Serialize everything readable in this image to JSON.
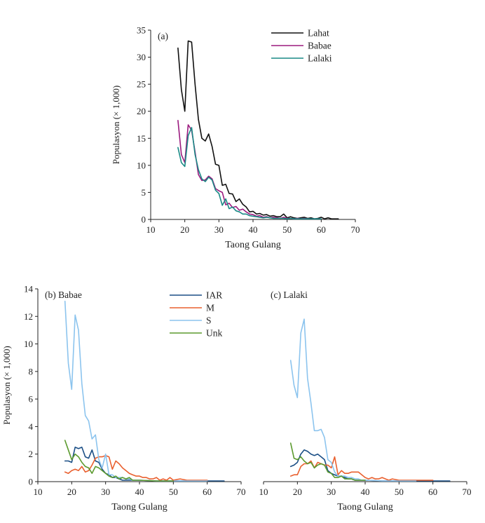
{
  "colors": {
    "Lahat": "#111111",
    "Babae": "#9b1a7f",
    "Lalaki": "#1a8a86",
    "IAR": "#1b4f86",
    "M": "#e9602f",
    "S": "#8cc4ee",
    "Unk": "#5b9a2e"
  },
  "chart_data": [
    {
      "id": "a",
      "type": "line",
      "title": "",
      "panel_label": "(a)",
      "xlabel": "Taong Gulang",
      "ylabel": "Populasyon (× 1,000)",
      "xlim": [
        10,
        70
      ],
      "ylim": [
        0,
        35
      ],
      "xticks": [
        10,
        20,
        30,
        40,
        50,
        60,
        70
      ],
      "yticks": [
        0,
        5,
        10,
        15,
        20,
        25,
        30,
        35
      ],
      "legend": "top-right",
      "series": [
        {
          "name": "Lahat",
          "x": [
            18,
            19,
            20,
            21,
            22,
            23,
            24,
            25,
            26,
            27,
            28,
            29,
            30,
            31,
            32,
            33,
            34,
            35,
            36,
            37,
            38,
            39,
            40,
            41,
            42,
            43,
            44,
            45,
            46,
            47,
            48,
            49,
            50,
            51,
            52,
            53,
            54,
            55,
            56,
            57,
            58,
            59,
            60,
            61,
            62,
            63,
            64,
            65
          ],
          "values": [
            31.7,
            24.0,
            20.0,
            33.0,
            32.8,
            25.0,
            18.5,
            15.0,
            14.5,
            15.8,
            13.5,
            10.2,
            10.0,
            6.3,
            6.5,
            4.8,
            4.7,
            3.3,
            3.8,
            2.8,
            2.3,
            1.4,
            1.5,
            1.0,
            1.1,
            0.8,
            0.9,
            0.6,
            0.7,
            0.5,
            0.5,
            1.0,
            0.3,
            0.5,
            0.3,
            0.2,
            0.3,
            0.4,
            0.2,
            0.3,
            0.1,
            0.2,
            0.4,
            0.1,
            0.3,
            0.1,
            0.1,
            0.1
          ]
        },
        {
          "name": "Babae",
          "x": [
            18,
            19,
            20,
            21,
            22,
            23,
            24,
            25,
            26,
            27,
            28,
            29,
            30,
            31,
            32,
            33,
            34,
            35,
            36,
            37,
            38,
            39,
            40,
            41,
            42,
            43,
            44,
            45,
            46,
            47,
            48,
            49,
            50,
            51,
            52,
            53,
            54,
            55,
            56,
            57,
            58,
            59,
            60
          ],
          "values": [
            18.3,
            12.0,
            10.5,
            17.5,
            16.5,
            12.5,
            8.3,
            7.2,
            7.3,
            8.0,
            7.5,
            5.7,
            5.3,
            5.0,
            2.7,
            3.0,
            2.2,
            2.4,
            1.7,
            1.9,
            1.4,
            1.0,
            0.9,
            0.6,
            0.7,
            0.4,
            0.5,
            0.3,
            0.4,
            0.3,
            0.2,
            0.4,
            0.2,
            0.2,
            0.1,
            0.2,
            0.1,
            0.2,
            0.1,
            0.1,
            0.1,
            0.1,
            0.1
          ]
        },
        {
          "name": "Lalaki",
          "x": [
            18,
            19,
            20,
            21,
            22,
            23,
            24,
            25,
            26,
            27,
            28,
            29,
            30,
            31,
            32,
            33,
            34,
            35,
            36,
            37,
            38,
            39,
            40,
            41,
            42,
            43,
            44,
            45,
            46,
            47,
            48,
            49,
            50,
            51,
            52,
            53,
            54,
            55,
            56,
            57,
            58,
            59,
            60
          ],
          "values": [
            13.3,
            10.5,
            9.8,
            15.5,
            17.0,
            12.0,
            9.2,
            7.5,
            7.0,
            7.8,
            7.3,
            5.4,
            4.8,
            2.6,
            3.8,
            2.0,
            2.3,
            1.6,
            1.4,
            1.0,
            1.0,
            0.7,
            0.6,
            0.5,
            0.4,
            0.3,
            0.4,
            0.3,
            0.2,
            0.2,
            0.2,
            0.2,
            0.1,
            0.2,
            0.1,
            0.1,
            0.1,
            0.1,
            0.1,
            0.1,
            0.1,
            0.1,
            0.1
          ]
        }
      ]
    },
    {
      "id": "b",
      "type": "line",
      "title": "",
      "panel_label": "(b) Babae",
      "xlabel": "Taong Gulang",
      "ylabel": "Populasyon (× 1,000)",
      "xlim": [
        10,
        70
      ],
      "ylim": [
        0,
        14
      ],
      "xticks": [
        10,
        20,
        30,
        40,
        50,
        60,
        70
      ],
      "yticks": [
        0,
        2,
        4,
        6,
        8,
        10,
        12,
        14
      ],
      "legend": "top-right",
      "series": [
        {
          "name": "IAR",
          "x": [
            18,
            19,
            20,
            21,
            22,
            23,
            24,
            25,
            26,
            27,
            28,
            29,
            30,
            31,
            32,
            33,
            34,
            35,
            36,
            37,
            38,
            39,
            40,
            45,
            50,
            55,
            60,
            65
          ],
          "values": [
            1.5,
            1.5,
            1.4,
            2.5,
            2.4,
            2.5,
            1.8,
            1.7,
            2.3,
            1.5,
            1.4,
            0.9,
            0.6,
            0.5,
            0.3,
            0.3,
            0.2,
            0.1,
            0.1,
            0.1,
            0.1,
            0.1,
            0.1,
            0.05,
            0.05,
            0.05,
            0.05,
            0.05
          ]
        },
        {
          "name": "M",
          "x": [
            18,
            19,
            20,
            21,
            22,
            23,
            24,
            25,
            26,
            27,
            28,
            29,
            30,
            31,
            32,
            33,
            34,
            35,
            36,
            37,
            38,
            39,
            40,
            41,
            42,
            43,
            44,
            45,
            46,
            47,
            48,
            49,
            50,
            52,
            54,
            56,
            58,
            60
          ],
          "values": [
            0.7,
            0.6,
            0.8,
            0.9,
            0.8,
            1.1,
            0.7,
            0.8,
            1.2,
            1.7,
            1.8,
            1.8,
            1.9,
            1.8,
            0.9,
            1.5,
            1.3,
            1.0,
            0.8,
            0.6,
            0.5,
            0.4,
            0.4,
            0.3,
            0.3,
            0.2,
            0.2,
            0.3,
            0.1,
            0.2,
            0.1,
            0.3,
            0.1,
            0.2,
            0.1,
            0.1,
            0.1,
            0.1
          ]
        },
        {
          "name": "S",
          "x": [
            18,
            19,
            20,
            21,
            22,
            23,
            24,
            25,
            26,
            27,
            28,
            29,
            30,
            31,
            32,
            33,
            34,
            35,
            36,
            37,
            38,
            39,
            40,
            45,
            50,
            55,
            60
          ],
          "values": [
            13.1,
            8.6,
            6.7,
            12.1,
            11.0,
            7.1,
            4.8,
            4.4,
            3.1,
            3.4,
            1.6,
            1.0,
            2.0,
            0.5,
            0.5,
            0.3,
            0.3,
            0.3,
            0.2,
            0.2,
            0.1,
            0.1,
            0.1,
            0.05,
            0.05,
            0.05,
            0.05
          ]
        },
        {
          "name": "Unk",
          "x": [
            18,
            19,
            20,
            21,
            22,
            23,
            24,
            25,
            26,
            27,
            28,
            29,
            30,
            31,
            32,
            33,
            34,
            35,
            36,
            37,
            38,
            39,
            40,
            45,
            50
          ],
          "values": [
            3.0,
            2.3,
            1.6,
            2.0,
            1.8,
            1.4,
            1.1,
            1.0,
            0.6,
            1.1,
            1.0,
            0.8,
            0.6,
            0.4,
            0.3,
            0.4,
            0.2,
            0.3,
            0.2,
            0.3,
            0.1,
            0.1,
            0.1,
            0.05,
            0.05
          ]
        }
      ]
    },
    {
      "id": "c",
      "type": "line",
      "title": "",
      "panel_label": "(c) Lalaki",
      "xlabel": "Taong Gulang",
      "ylabel": "",
      "xlim": [
        10,
        70
      ],
      "ylim": [
        0,
        14
      ],
      "xticks": [
        10,
        20,
        30,
        40,
        50,
        60,
        70
      ],
      "yticks": [],
      "legend": "none",
      "series": [
        {
          "name": "IAR",
          "x": [
            18,
            19,
            20,
            21,
            22,
            23,
            24,
            25,
            26,
            27,
            28,
            29,
            30,
            31,
            32,
            33,
            34,
            35,
            36,
            37,
            38,
            39,
            40,
            45,
            50,
            55,
            60,
            65
          ],
          "values": [
            1.1,
            1.2,
            1.4,
            2.0,
            2.3,
            2.2,
            2.0,
            1.9,
            2.0,
            1.8,
            1.6,
            0.8,
            0.6,
            0.5,
            0.4,
            0.4,
            0.3,
            0.2,
            0.2,
            0.1,
            0.1,
            0.1,
            0.1,
            0.05,
            0.05,
            0.05,
            0.05,
            0.05
          ]
        },
        {
          "name": "M",
          "x": [
            18,
            19,
            20,
            21,
            22,
            23,
            24,
            25,
            26,
            27,
            28,
            29,
            30,
            31,
            32,
            33,
            34,
            35,
            36,
            37,
            38,
            39,
            40,
            41,
            42,
            43,
            44,
            45,
            46,
            47,
            48,
            50,
            52,
            54,
            56,
            58,
            60
          ],
          "values": [
            0.4,
            0.5,
            0.5,
            1.1,
            1.3,
            1.3,
            1.5,
            1.0,
            1.4,
            1.3,
            1.2,
            1.2,
            1.0,
            1.8,
            0.5,
            0.8,
            0.6,
            0.6,
            0.7,
            0.7,
            0.7,
            0.5,
            0.3,
            0.2,
            0.3,
            0.2,
            0.2,
            0.3,
            0.2,
            0.1,
            0.2,
            0.1,
            0.1,
            0.1,
            0.1,
            0.1,
            0.1
          ]
        },
        {
          "name": "S",
          "x": [
            18,
            19,
            20,
            21,
            22,
            23,
            24,
            25,
            26,
            27,
            28,
            29,
            30,
            31,
            32,
            33,
            34,
            35,
            36,
            37,
            38,
            39,
            40,
            45,
            50,
            55
          ],
          "values": [
            8.8,
            7.0,
            6.1,
            10.8,
            11.8,
            7.5,
            5.7,
            3.7,
            3.7,
            3.8,
            3.2,
            1.6,
            1.4,
            0.7,
            0.4,
            0.4,
            0.4,
            0.3,
            0.3,
            0.2,
            0.2,
            0.1,
            0.1,
            0.05,
            0.05,
            0.05
          ]
        },
        {
          "name": "Unk",
          "x": [
            18,
            19,
            20,
            21,
            22,
            23,
            24,
            25,
            26,
            27,
            28,
            29,
            30,
            31,
            32,
            33,
            34,
            35,
            36,
            37,
            38,
            39,
            40
          ],
          "values": [
            2.8,
            1.7,
            1.6,
            1.8,
            1.5,
            1.3,
            1.4,
            1.0,
            1.2,
            1.3,
            1.2,
            0.7,
            0.6,
            0.3,
            0.3,
            0.4,
            0.2,
            0.2,
            0.2,
            0.1,
            0.1,
            0.1,
            0.1
          ]
        }
      ]
    }
  ]
}
